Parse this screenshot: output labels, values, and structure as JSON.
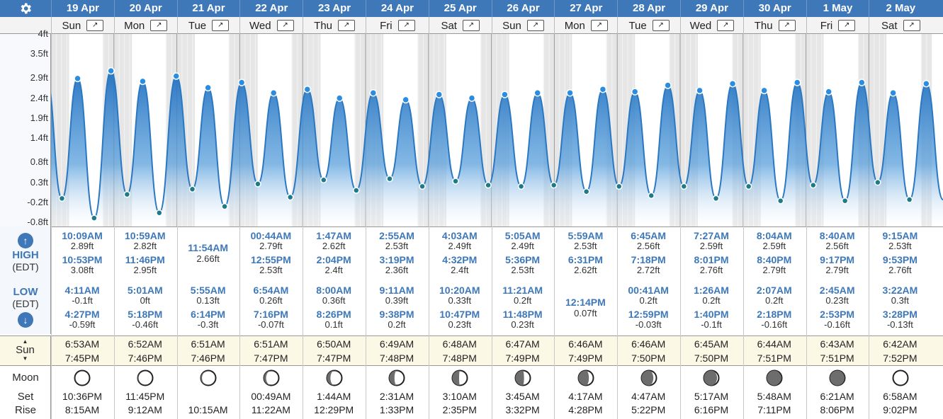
{
  "header": {
    "settings_icon": "gear-icon",
    "dates": [
      "19 Apr",
      "20 Apr",
      "21 Apr",
      "22 Apr",
      "23 Apr",
      "24 Apr",
      "25 Apr",
      "26 Apr",
      "27 Apr",
      "28 Apr",
      "29 Apr",
      "30 Apr",
      "1 May",
      "2 May"
    ],
    "weekdays": [
      "Sun",
      "Mon",
      "Tue",
      "Wed",
      "Thu",
      "Fri",
      "Sat",
      "Sun",
      "Mon",
      "Tue",
      "Wed",
      "Thu",
      "Fri",
      "Sat"
    ],
    "expand_icon": "expand-arrows-icon"
  },
  "y_axis": {
    "ticks": [
      "4ft",
      "3.5ft",
      "2.9ft",
      "2.4ft",
      "1.9ft",
      "1.4ft",
      "0.8ft",
      "0.3ft",
      "-0.2ft",
      "-0.8ft"
    ]
  },
  "chart_data": {
    "type": "area",
    "y_unit": "ft",
    "ylim": [
      -0.8,
      4.0
    ],
    "events": [
      {
        "day": 0,
        "t": "10:09AM",
        "h": 2.89
      },
      {
        "day": 0,
        "t": "4:11AM",
        "h": -0.1
      },
      {
        "day": 0,
        "t": "10:53PM",
        "h": 3.08
      },
      {
        "day": 0,
        "t": "4:27PM",
        "h": -0.59
      },
      {
        "day": 1,
        "t": "10:59AM",
        "h": 2.82
      },
      {
        "day": 1,
        "t": "5:01AM",
        "h": 0
      },
      {
        "day": 1,
        "t": "11:46PM",
        "h": 2.95
      },
      {
        "day": 1,
        "t": "5:18PM",
        "h": -0.46
      },
      {
        "day": 2,
        "t": "11:54AM",
        "h": 2.66
      },
      {
        "day": 2,
        "t": "5:55AM",
        "h": 0.13
      },
      {
        "day": 2,
        "t": "6:14PM",
        "h": -0.3
      },
      {
        "day": 3,
        "t": "00:44AM",
        "h": 2.79
      },
      {
        "day": 3,
        "t": "6:54AM",
        "h": 0.26
      },
      {
        "day": 3,
        "t": "12:55PM",
        "h": 2.53
      },
      {
        "day": 3,
        "t": "7:16PM",
        "h": -0.07
      },
      {
        "day": 4,
        "t": "1:47AM",
        "h": 2.62
      },
      {
        "day": 4,
        "t": "8:00AM",
        "h": 0.36
      },
      {
        "day": 4,
        "t": "2:04PM",
        "h": 2.4
      },
      {
        "day": 4,
        "t": "8:26PM",
        "h": 0.1
      },
      {
        "day": 5,
        "t": "2:55AM",
        "h": 2.53
      },
      {
        "day": 5,
        "t": "9:11AM",
        "h": 0.39
      },
      {
        "day": 5,
        "t": "3:19PM",
        "h": 2.36
      },
      {
        "day": 5,
        "t": "9:38PM",
        "h": 0.2
      },
      {
        "day": 6,
        "t": "4:03AM",
        "h": 2.49
      },
      {
        "day": 6,
        "t": "10:20AM",
        "h": 0.33
      },
      {
        "day": 6,
        "t": "4:32PM",
        "h": 2.4
      },
      {
        "day": 6,
        "t": "10:47PM",
        "h": 0.23
      },
      {
        "day": 7,
        "t": "5:05AM",
        "h": 2.49
      },
      {
        "day": 7,
        "t": "11:21AM",
        "h": 0.2
      },
      {
        "day": 7,
        "t": "5:36PM",
        "h": 2.53
      },
      {
        "day": 7,
        "t": "11:48PM",
        "h": 0.23
      },
      {
        "day": 8,
        "t": "5:59AM",
        "h": 2.53
      },
      {
        "day": 8,
        "t": "12:14PM",
        "h": 0.07
      },
      {
        "day": 8,
        "t": "6:31PM",
        "h": 2.62
      },
      {
        "day": 9,
        "t": "00:41AM",
        "h": 0.2
      },
      {
        "day": 9,
        "t": "6:45AM",
        "h": 2.56
      },
      {
        "day": 9,
        "t": "12:59PM",
        "h": -0.03
      },
      {
        "day": 9,
        "t": "7:18PM",
        "h": 2.72
      },
      {
        "day": 10,
        "t": "1:26AM",
        "h": 0.2
      },
      {
        "day": 10,
        "t": "7:27AM",
        "h": 2.59
      },
      {
        "day": 10,
        "t": "1:40PM",
        "h": -0.1
      },
      {
        "day": 10,
        "t": "8:01PM",
        "h": 2.76
      },
      {
        "day": 11,
        "t": "2:07AM",
        "h": 0.2
      },
      {
        "day": 11,
        "t": "8:04AM",
        "h": 2.59
      },
      {
        "day": 11,
        "t": "2:18PM",
        "h": -0.16
      },
      {
        "day": 11,
        "t": "8:40PM",
        "h": 2.79
      },
      {
        "day": 12,
        "t": "2:45AM",
        "h": 0.23
      },
      {
        "day": 12,
        "t": "8:40AM",
        "h": 2.56
      },
      {
        "day": 12,
        "t": "2:53PM",
        "h": -0.16
      },
      {
        "day": 12,
        "t": "9:17PM",
        "h": 2.79
      },
      {
        "day": 13,
        "t": "3:22AM",
        "h": 0.3
      },
      {
        "day": 13,
        "t": "9:15AM",
        "h": 2.53
      },
      {
        "day": 13,
        "t": "3:28PM",
        "h": -0.13
      },
      {
        "day": 13,
        "t": "9:53PM",
        "h": 2.76
      }
    ]
  },
  "tides": {
    "high_label": "HIGH",
    "high_tz": "(EDT)",
    "low_label": "LOW",
    "low_tz": "(EDT)",
    "up_icon": "arrow-up-icon",
    "down_icon": "arrow-down-icon",
    "highs": [
      [
        {
          "time": "10:09AM",
          "height": "2.89ft"
        },
        {
          "time": "10:53PM",
          "height": "3.08ft"
        }
      ],
      [
        {
          "time": "10:59AM",
          "height": "2.82ft"
        },
        {
          "time": "11:46PM",
          "height": "2.95ft"
        }
      ],
      [
        {
          "time": "11:54AM",
          "height": "2.66ft"
        }
      ],
      [
        {
          "time": "00:44AM",
          "height": "2.79ft"
        },
        {
          "time": "12:55PM",
          "height": "2.53ft"
        }
      ],
      [
        {
          "time": "1:47AM",
          "height": "2.62ft"
        },
        {
          "time": "2:04PM",
          "height": "2.4ft"
        }
      ],
      [
        {
          "time": "2:55AM",
          "height": "2.53ft"
        },
        {
          "time": "3:19PM",
          "height": "2.36ft"
        }
      ],
      [
        {
          "time": "4:03AM",
          "height": "2.49ft"
        },
        {
          "time": "4:32PM",
          "height": "2.4ft"
        }
      ],
      [
        {
          "time": "5:05AM",
          "height": "2.49ft"
        },
        {
          "time": "5:36PM",
          "height": "2.53ft"
        }
      ],
      [
        {
          "time": "5:59AM",
          "height": "2.53ft"
        },
        {
          "time": "6:31PM",
          "height": "2.62ft"
        }
      ],
      [
        {
          "time": "6:45AM",
          "height": "2.56ft"
        },
        {
          "time": "7:18PM",
          "height": "2.72ft"
        }
      ],
      [
        {
          "time": "7:27AM",
          "height": "2.59ft"
        },
        {
          "time": "8:01PM",
          "height": "2.76ft"
        }
      ],
      [
        {
          "time": "8:04AM",
          "height": "2.59ft"
        },
        {
          "time": "8:40PM",
          "height": "2.79ft"
        }
      ],
      [
        {
          "time": "8:40AM",
          "height": "2.56ft"
        },
        {
          "time": "9:17PM",
          "height": "2.79ft"
        }
      ],
      [
        {
          "time": "9:15AM",
          "height": "2.53ft"
        },
        {
          "time": "9:53PM",
          "height": "2.76ft"
        }
      ]
    ],
    "lows": [
      [
        {
          "time": "4:11AM",
          "height": "-0.1ft"
        },
        {
          "time": "4:27PM",
          "height": "-0.59ft"
        }
      ],
      [
        {
          "time": "5:01AM",
          "height": "0ft"
        },
        {
          "time": "5:18PM",
          "height": "-0.46ft"
        }
      ],
      [
        {
          "time": "5:55AM",
          "height": "0.13ft"
        },
        {
          "time": "6:14PM",
          "height": "-0.3ft"
        }
      ],
      [
        {
          "time": "6:54AM",
          "height": "0.26ft"
        },
        {
          "time": "7:16PM",
          "height": "-0.07ft"
        }
      ],
      [
        {
          "time": "8:00AM",
          "height": "0.36ft"
        },
        {
          "time": "8:26PM",
          "height": "0.1ft"
        }
      ],
      [
        {
          "time": "9:11AM",
          "height": "0.39ft"
        },
        {
          "time": "9:38PM",
          "height": "0.2ft"
        }
      ],
      [
        {
          "time": "10:20AM",
          "height": "0.33ft"
        },
        {
          "time": "10:47PM",
          "height": "0.23ft"
        }
      ],
      [
        {
          "time": "11:21AM",
          "height": "0.2ft"
        },
        {
          "time": "11:48PM",
          "height": "0.23ft"
        }
      ],
      [
        {
          "time": "12:14PM",
          "height": "0.07ft"
        }
      ],
      [
        {
          "time": "00:41AM",
          "height": "0.2ft"
        },
        {
          "time": "12:59PM",
          "height": "-0.03ft"
        }
      ],
      [
        {
          "time": "1:26AM",
          "height": "0.2ft"
        },
        {
          "time": "1:40PM",
          "height": "-0.1ft"
        }
      ],
      [
        {
          "time": "2:07AM",
          "height": "0.2ft"
        },
        {
          "time": "2:18PM",
          "height": "-0.16ft"
        }
      ],
      [
        {
          "time": "2:45AM",
          "height": "0.23ft"
        },
        {
          "time": "2:53PM",
          "height": "-0.16ft"
        }
      ],
      [
        {
          "time": "3:22AM",
          "height": "0.3ft"
        },
        {
          "time": "3:28PM",
          "height": "-0.13ft"
        }
      ]
    ]
  },
  "sun": {
    "label": "Sun",
    "icon": "sun-updown-arrows-icon",
    "rise": [
      "6:53AM",
      "6:52AM",
      "6:51AM",
      "6:51AM",
      "6:50AM",
      "6:49AM",
      "6:48AM",
      "6:47AM",
      "6:46AM",
      "6:46AM",
      "6:45AM",
      "6:44AM",
      "6:43AM",
      "6:42AM"
    ],
    "set": [
      "7:45PM",
      "7:46PM",
      "7:46PM",
      "7:47PM",
      "7:47PM",
      "7:48PM",
      "7:48PM",
      "7:49PM",
      "7:49PM",
      "7:50PM",
      "7:50PM",
      "7:51PM",
      "7:51PM",
      "7:52PM"
    ]
  },
  "moon": {
    "label": "Moon",
    "set_label": "Set",
    "rise_label": "Rise",
    "phase_icon": "moon-phase-icon",
    "phases": [
      0.05,
      0.1,
      0.18,
      0.25,
      0.32,
      0.4,
      0.47,
      0.55,
      0.63,
      0.7,
      0.78,
      0.85,
      0.9,
      0.95
    ],
    "set": [
      "10:36PM",
      "11:45PM",
      "",
      "00:49AM",
      "1:44AM",
      "2:31AM",
      "3:10AM",
      "3:45AM",
      "4:17AM",
      "4:47AM",
      "5:17AM",
      "5:48AM",
      "6:21AM",
      "6:58AM"
    ],
    "rise": [
      "8:15AM",
      "9:12AM",
      "10:15AM",
      "11:22AM",
      "12:29PM",
      "1:33PM",
      "2:35PM",
      "3:32PM",
      "4:28PM",
      "5:22PM",
      "6:16PM",
      "7:11PM",
      "8:06PM",
      "9:02PM"
    ]
  },
  "colors": {
    "header": "#3e78b8",
    "tide_fill": "#2f7fc8",
    "night": "#e6e6e6",
    "sun_row": "#fcf8e6"
  }
}
